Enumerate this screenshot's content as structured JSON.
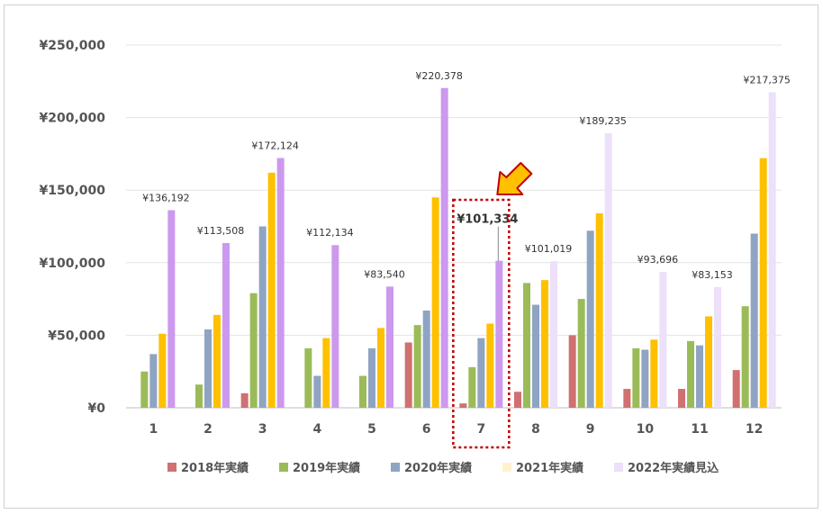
{
  "chart_data": {
    "type": "bar",
    "categories": [
      "1",
      "2",
      "3",
      "4",
      "5",
      "6",
      "7",
      "8",
      "9",
      "10",
      "11",
      "12"
    ],
    "ylim": [
      0,
      250000
    ],
    "yticks": [
      0,
      50000,
      100000,
      150000,
      200000,
      250000
    ],
    "ytick_labels": [
      "¥0",
      "¥50,000",
      "¥100,000",
      "¥150,000",
      "¥200,000",
      "¥250,000"
    ],
    "grid": true,
    "legend_position": "bottom",
    "series": [
      {
        "name": "2018年実績",
        "color": "#d07070",
        "values": [
          0,
          0,
          10000,
          0,
          0,
          45000,
          3000,
          11000,
          50000,
          13000,
          13000,
          26000
        ]
      },
      {
        "name": "2019年実績",
        "color": "#9bbb59",
        "values": [
          25000,
          16000,
          79000,
          41000,
          22000,
          57000,
          28000,
          86000,
          75000,
          41000,
          46000,
          70000
        ]
      },
      {
        "name": "2020年実績",
        "color": "#8ea4c2",
        "values": [
          37000,
          54000,
          125000,
          22000,
          41000,
          67000,
          48000,
          71000,
          122000,
          40000,
          43000,
          120000
        ]
      },
      {
        "name": "2021年実績",
        "color": "#ffc000",
        "values": [
          51000,
          64000,
          162000,
          48000,
          55000,
          145000,
          58000,
          88000,
          134000,
          47000,
          63000,
          172000
        ]
      },
      {
        "name": "2022年実績見込",
        "color": "#cc99ee",
        "values": [
          136192,
          113508,
          172124,
          112134,
          83540,
          220378,
          101334,
          101019,
          189235,
          93696,
          83153,
          217375
        ]
      }
    ],
    "faded_categories": [
      "8",
      "9",
      "10",
      "11",
      "12"
    ],
    "faded_color_2022": "#ede0fb",
    "data_labels": [
      "¥136,192",
      "¥113,508",
      "¥172,124",
      "¥112,134",
      "¥83,540",
      "¥220,378",
      "¥101,334",
      "¥101,019",
      "¥189,235",
      "¥93,696",
      "¥83,153",
      "¥217,375"
    ],
    "highlight_category": "7",
    "highlight_color": "#c00000",
    "arrow_color": "#ffc000"
  }
}
